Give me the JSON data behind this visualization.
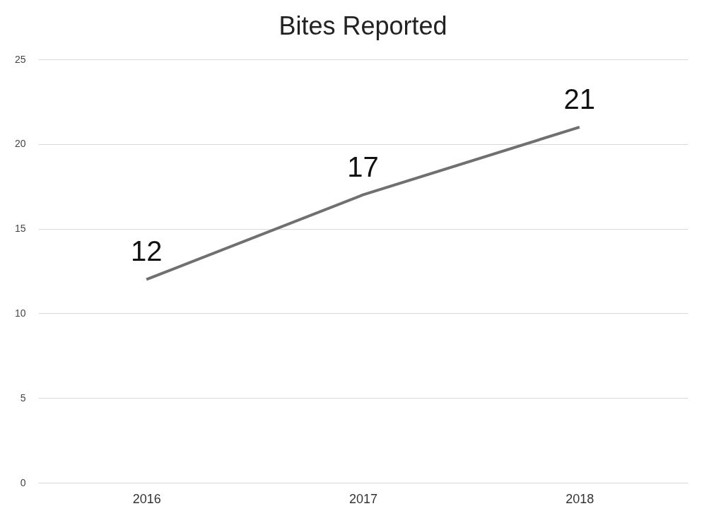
{
  "chart_data": {
    "type": "line",
    "title": "Bites Reported",
    "categories": [
      "2016",
      "2017",
      "2018"
    ],
    "series": [
      {
        "color": "#707070",
        "values": [
          12,
          17,
          21
        ]
      }
    ],
    "ylim": [
      0,
      25
    ],
    "yticks": [
      0,
      5,
      10,
      15,
      20,
      25
    ],
    "grid": "y",
    "data_labels": true,
    "legend": false
  }
}
